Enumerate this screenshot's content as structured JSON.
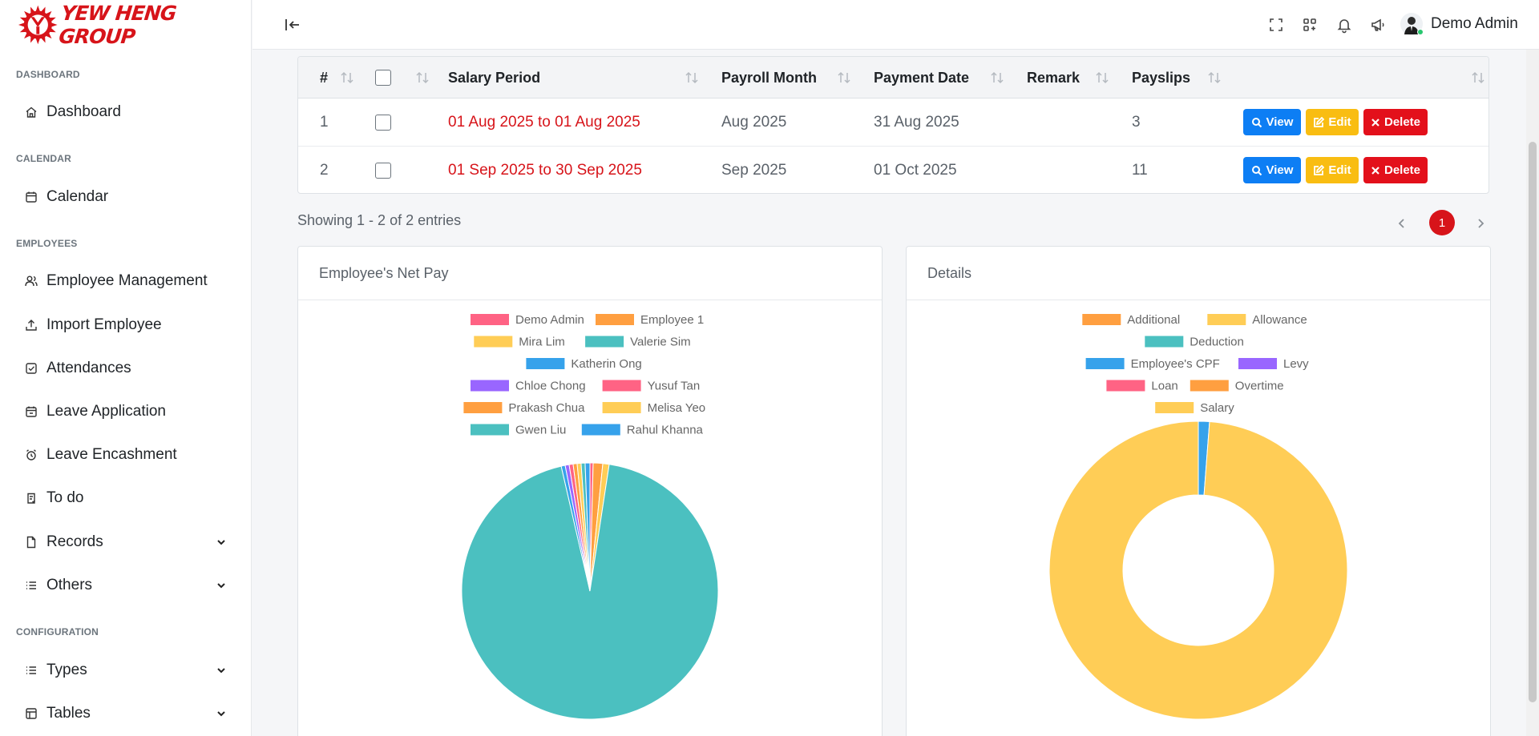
{
  "brand": {
    "name": "YEW HENG GROUP",
    "accent": "#d7141a"
  },
  "sidebar": {
    "sections": {
      "dashboard": "DASHBOARD",
      "calendar": "CALENDAR",
      "employees": "EMPLOYEES",
      "configuration": "CONFIGURATION"
    },
    "items": {
      "dashboard": "Dashboard",
      "calendar": "Calendar",
      "employee_management": "Employee Management",
      "import_employee": "Import Employee",
      "attendances": "Attendances",
      "leave_application": "Leave Application",
      "leave_encashment": "Leave Encashment",
      "todo": "To do",
      "records": "Records",
      "others": "Others",
      "types": "Types",
      "tables": "Tables"
    }
  },
  "topbar": {
    "user_name": "Demo Admin"
  },
  "table": {
    "headers": [
      "#",
      "Salary Period",
      "Payroll Month",
      "Payment Date",
      "Remark",
      "Payslips"
    ],
    "rows": [
      {
        "no": "1",
        "period": "01 Aug 2025 to 01 Aug 2025",
        "month": "Aug 2025",
        "payment_date": "31 Aug 2025",
        "remark": "",
        "payslips": "3"
      },
      {
        "no": "2",
        "period": "01 Sep 2025 to 30 Sep 2025",
        "month": "Sep 2025",
        "payment_date": "01 Oct 2025",
        "remark": "",
        "payslips": "11"
      }
    ],
    "actions": {
      "view": "View",
      "edit": "Edit",
      "delete": "Delete"
    }
  },
  "pagination": {
    "showing": "Showing 1 - 2 of 2 entries",
    "current_page": "1"
  },
  "cards": {
    "net_pay_title": "Employee's Net Pay",
    "details_title": "Details"
  },
  "chart_data": [
    {
      "type": "pie",
      "title": "Employee's Net Pay",
      "legend_position": "top",
      "labels": [
        "Demo Admin",
        "Employee 1",
        "Mira Lim",
        "Valerie Sim",
        "Katherin Ong",
        "Chloe Chong",
        "Yusuf Tan",
        "Prakash Chua",
        "Melisa Yeo",
        "Gwen Liu",
        "Rahul Khanna"
      ],
      "colors": [
        "#ff6384",
        "#ff9f40",
        "#ffcd56",
        "#4bc0c0",
        "#36a2eb",
        "#9966ff",
        "#ff6384",
        "#ff9f40",
        "#ffcd56",
        "#4bc0c0",
        "#36a2eb"
      ],
      "values": [
        0.4,
        1.2,
        0.8,
        94.0,
        0.5,
        0.5,
        0.5,
        0.5,
        0.5,
        0.5,
        0.6
      ]
    },
    {
      "type": "pie",
      "title": "Details",
      "legend_position": "top",
      "donut": true,
      "labels": [
        "Additional",
        "Allowance",
        "Deduction",
        "Employee's CPF",
        "Levy",
        "Loan",
        "Overtime",
        "Salary"
      ],
      "colors": [
        "#ff9f40",
        "#ffcd56",
        "#4bc0c0",
        "#36a2eb",
        "#9966ff",
        "#ff6384",
        "#ff9f40",
        "#ffcd56"
      ],
      "values": [
        0,
        0,
        0,
        1.2,
        0,
        0,
        0,
        98.8
      ]
    }
  ]
}
